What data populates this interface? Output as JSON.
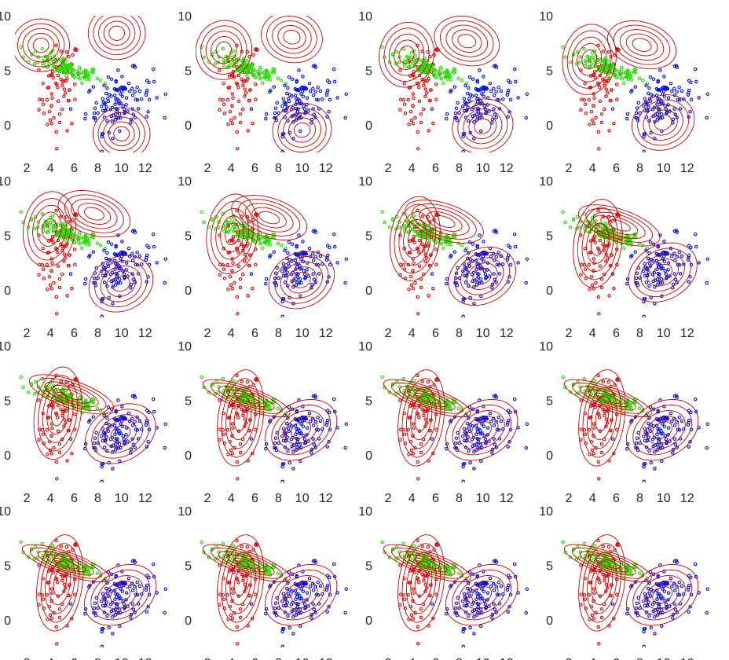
{
  "chart_data": {
    "type": "scatter",
    "layout": {
      "rows": 4,
      "cols": 4
    },
    "panels_count": 16,
    "xlim": [
      1,
      14
    ],
    "ylim": [
      -2.5,
      10
    ],
    "xticks": [
      2,
      4,
      6,
      8,
      10,
      12
    ],
    "yticks": [
      0,
      5,
      10
    ],
    "grid": false,
    "legend": "none",
    "colors": {
      "cluster_red": "#e00000",
      "cluster_green": "#22dd00",
      "cluster_blue": "#0010dd",
      "contour": "#cc0000"
    },
    "clusters": [
      {
        "color": "cluster_red",
        "n": 70,
        "mean": [
          4.8,
          3.3
        ],
        "cov": [
          [
            0.75,
            0.35
          ],
          [
            0.35,
            4.3
          ]
        ]
      },
      {
        "color": "cluster_green",
        "n": 110,
        "mean": [
          5.2,
          5.3
        ],
        "cov": [
          [
            2.6,
            -0.95
          ],
          [
            -0.95,
            0.55
          ]
        ]
      },
      {
        "color": "cluster_blue",
        "n": 120,
        "mean": [
          9.8,
          2.2
        ],
        "cov": [
          [
            2.0,
            0.5
          ],
          [
            0.5,
            1.7
          ]
        ]
      }
    ],
    "components_initial": [
      {
        "mean": [
          3.2,
          7.3
        ],
        "cov": [
          [
            1.2,
            0
          ],
          [
            0,
            1.2
          ]
        ]
      },
      {
        "mean": [
          9.6,
          8.4
        ],
        "cov": [
          [
            1.2,
            0
          ],
          [
            0,
            1.2
          ]
        ]
      },
      {
        "mean": [
          10.0,
          -0.8
        ],
        "cov": [
          [
            1.2,
            0
          ],
          [
            0,
            1.2
          ]
        ]
      }
    ],
    "components_final": [
      {
        "mean": [
          4.8,
          3.4
        ],
        "cov": [
          [
            0.8,
            0.4
          ],
          [
            0.4,
            4.0
          ]
        ]
      },
      {
        "mean": [
          5.3,
          5.2
        ],
        "cov": [
          [
            2.8,
            -1.0
          ],
          [
            -1.0,
            0.6
          ]
        ]
      },
      {
        "mean": [
          9.9,
          2.3
        ],
        "cov": [
          [
            1.9,
            0.5
          ],
          [
            0.5,
            1.6
          ]
        ]
      }
    ],
    "contour_levels_sigma": [
      0.6,
      1.0,
      1.4,
      1.8,
      2.2
    ]
  }
}
